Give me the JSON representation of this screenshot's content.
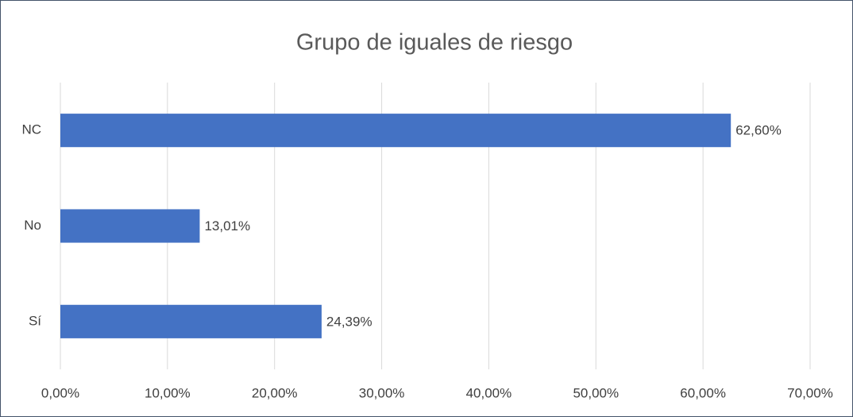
{
  "chart_data": {
    "type": "bar",
    "orientation": "horizontal",
    "title": "Grupo de iguales de riesgo",
    "categories": [
      "NC",
      "No",
      "Sí"
    ],
    "values": [
      62.6,
      13.01,
      24.39
    ],
    "value_labels": [
      "62,60%",
      "13,01%",
      "24,39%"
    ],
    "color": "#4472c4",
    "xlim": [
      0,
      70
    ],
    "xticks": [
      {
        "value": 0,
        "label": "0,00%"
      },
      {
        "value": 10,
        "label": "10,00%"
      },
      {
        "value": 20,
        "label": "20,00%"
      },
      {
        "value": 30,
        "label": "30,00%"
      },
      {
        "value": 40,
        "label": "40,00%"
      },
      {
        "value": 50,
        "label": "50,00%"
      },
      {
        "value": 60,
        "label": "60,00%"
      },
      {
        "value": 70,
        "label": "70,00%"
      }
    ],
    "grid": true
  }
}
